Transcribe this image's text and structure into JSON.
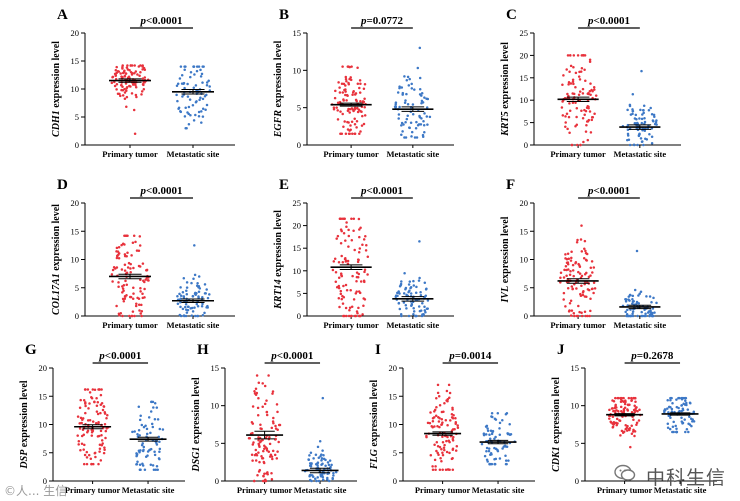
{
  "colors": {
    "primary": "#e8323c",
    "metastatic": "#3d78c6",
    "axis": "#000000"
  },
  "watermark": {
    "main": "中科生信",
    "corner": "©人... 生信"
  },
  "panels": [
    {
      "letter": "A",
      "gene": "CDH1",
      "pvalue": "p<0.0001",
      "ylabel_suffix": " expression level",
      "yticks": [
        "0",
        "5",
        "10",
        "15",
        "20"
      ]
    },
    {
      "letter": "B",
      "gene": "EGFR",
      "pvalue": "p=0.0772",
      "ylabel_suffix": " expression level",
      "yticks": [
        "0",
        "5",
        "10",
        "15"
      ]
    },
    {
      "letter": "C",
      "gene": "KRT5",
      "pvalue": "p<0.0001",
      "ylabel_suffix": " expression level",
      "yticks": [
        "0",
        "5",
        "10",
        "15",
        "20",
        "25"
      ]
    },
    {
      "letter": "D",
      "gene": "COL17A1",
      "pvalue": "p<0.0001",
      "ylabel_suffix": " expression level",
      "yticks": [
        "0",
        "5",
        "10",
        "15",
        "20"
      ]
    },
    {
      "letter": "E",
      "gene": "KRT14",
      "pvalue": "p<0.0001",
      "ylabel_suffix": " expression level",
      "yticks": [
        "0",
        "5",
        "10",
        "15",
        "20",
        "25"
      ]
    },
    {
      "letter": "F",
      "gene": "IVL",
      "pvalue": "p<0.0001",
      "ylabel_suffix": " expression level",
      "yticks": [
        "0",
        "5",
        "10",
        "15",
        "20"
      ]
    },
    {
      "letter": "G",
      "gene": "DSP",
      "pvalue": "p<0.0001",
      "ylabel_suffix": " expression level",
      "yticks": [
        "0",
        "5",
        "10",
        "15",
        "20"
      ]
    },
    {
      "letter": "H",
      "gene": "DSG1",
      "pvalue": "p<0.0001",
      "ylabel_suffix": " expression level",
      "yticks": [
        "0",
        "5",
        "10",
        "15"
      ]
    },
    {
      "letter": "I",
      "gene": "FLG",
      "pvalue": "p=0.0014",
      "ylabel_suffix": " expression level",
      "yticks": [
        "0",
        "5",
        "10",
        "15",
        "20"
      ]
    },
    {
      "letter": "J",
      "gene": "CDK1",
      "pvalue": "p=0.2678",
      "ylabel_suffix": " expression level",
      "yticks": [
        "0",
        "5",
        "10",
        "15"
      ]
    }
  ],
  "chart_data": [
    {
      "type": "scatter",
      "panel": "A",
      "ylabel": "CDH1 expression level",
      "ylim": [
        0,
        20
      ],
      "categories": [
        "Primary tumor",
        "Metastatic site"
      ],
      "series": [
        {
          "name": "Primary tumor",
          "mean": 11.5,
          "sem": 0.3,
          "n": 110,
          "min": 2,
          "max": 14.2
        },
        {
          "name": "Metastatic site",
          "mean": 9.5,
          "sem": 0.4,
          "n": 80,
          "min": 3,
          "max": 14.0
        }
      ]
    },
    {
      "type": "scatter",
      "panel": "B",
      "ylabel": "EGFR expression level",
      "ylim": [
        0,
        15
      ],
      "categories": [
        "Primary tumor",
        "Metastatic site"
      ],
      "series": [
        {
          "name": "Primary tumor",
          "mean": 5.4,
          "sem": 0.2,
          "n": 110,
          "min": 1.5,
          "max": 10.5
        },
        {
          "name": "Metastatic site",
          "mean": 4.8,
          "sem": 0.3,
          "n": 80,
          "min": 1,
          "max": 13
        }
      ]
    },
    {
      "type": "scatter",
      "panel": "C",
      "ylabel": "KRT5 expression level",
      "ylim": [
        0,
        25
      ],
      "categories": [
        "Primary tumor",
        "Metastatic site"
      ],
      "series": [
        {
          "name": "Primary tumor",
          "mean": 10.2,
          "sem": 0.5,
          "n": 110,
          "min": 0,
          "max": 20
        },
        {
          "name": "Metastatic site",
          "mean": 4.0,
          "sem": 0.5,
          "n": 80,
          "min": 0,
          "max": 16.5
        }
      ]
    },
    {
      "type": "scatter",
      "panel": "D",
      "ylabel": "COL17A1 expression level",
      "ylim": [
        0,
        20
      ],
      "categories": [
        "Primary tumor",
        "Metastatic site"
      ],
      "series": [
        {
          "name": "Primary tumor",
          "mean": 7.0,
          "sem": 0.4,
          "n": 110,
          "min": 0,
          "max": 14.2
        },
        {
          "name": "Metastatic site",
          "mean": 2.7,
          "sem": 0.3,
          "n": 80,
          "min": 0,
          "max": 12.5
        }
      ]
    },
    {
      "type": "scatter",
      "panel": "E",
      "ylabel": "KRT14 expression level",
      "ylim": [
        0,
        25
      ],
      "categories": [
        "Primary tumor",
        "Metastatic site"
      ],
      "series": [
        {
          "name": "Primary tumor",
          "mean": 10.8,
          "sem": 0.5,
          "n": 110,
          "min": 0,
          "max": 21.5
        },
        {
          "name": "Metastatic site",
          "mean": 3.8,
          "sem": 0.5,
          "n": 80,
          "min": 0,
          "max": 16.5
        }
      ]
    },
    {
      "type": "scatter",
      "panel": "F",
      "ylabel": "IVL expression level",
      "ylim": [
        0,
        20
      ],
      "categories": [
        "Primary tumor",
        "Metastatic site"
      ],
      "series": [
        {
          "name": "Primary tumor",
          "mean": 6.2,
          "sem": 0.4,
          "n": 110,
          "min": 0,
          "max": 16
        },
        {
          "name": "Metastatic site",
          "mean": 1.6,
          "sem": 0.3,
          "n": 80,
          "min": 0,
          "max": 11.5
        }
      ]
    },
    {
      "type": "scatter",
      "panel": "G",
      "ylabel": "DSP expression level",
      "ylim": [
        0,
        20
      ],
      "categories": [
        "Primary tumor",
        "Metastatic site"
      ],
      "series": [
        {
          "name": "Primary tumor",
          "mean": 9.6,
          "sem": 0.35,
          "n": 110,
          "min": 3,
          "max": 16.2
        },
        {
          "name": "Metastatic site",
          "mean": 7.4,
          "sem": 0.35,
          "n": 80,
          "min": 2,
          "max": 14
        }
      ]
    },
    {
      "type": "scatter",
      "panel": "H",
      "ylabel": "DSG1 expression level",
      "ylim": [
        0,
        15
      ],
      "categories": [
        "Primary tumor",
        "Metastatic site"
      ],
      "series": [
        {
          "name": "Primary tumor",
          "mean": 6.1,
          "sem": 0.5,
          "n": 110,
          "min": 0,
          "max": 14
        },
        {
          "name": "Metastatic site",
          "mean": 1.4,
          "sem": 0.3,
          "n": 80,
          "min": 0,
          "max": 11
        }
      ]
    },
    {
      "type": "scatter",
      "panel": "I",
      "ylabel": "FLG expression level",
      "ylim": [
        0,
        20
      ],
      "categories": [
        "Primary tumor",
        "Metastatic site"
      ],
      "series": [
        {
          "name": "Primary tumor",
          "mean": 8.4,
          "sem": 0.3,
          "n": 110,
          "min": 2,
          "max": 17
        },
        {
          "name": "Metastatic site",
          "mean": 6.9,
          "sem": 0.3,
          "n": 80,
          "min": 3,
          "max": 12
        }
      ]
    },
    {
      "type": "scatter",
      "panel": "J",
      "ylabel": "CDK1 expression level",
      "ylim": [
        0,
        15
      ],
      "categories": [
        "Primary tumor",
        "Metastatic site"
      ],
      "series": [
        {
          "name": "Primary tumor",
          "mean": 8.8,
          "sem": 0.15,
          "n": 110,
          "min": 4.5,
          "max": 11
        },
        {
          "name": "Metastatic site",
          "mean": 8.9,
          "sem": 0.15,
          "n": 80,
          "min": 6.5,
          "max": 11
        }
      ]
    }
  ]
}
